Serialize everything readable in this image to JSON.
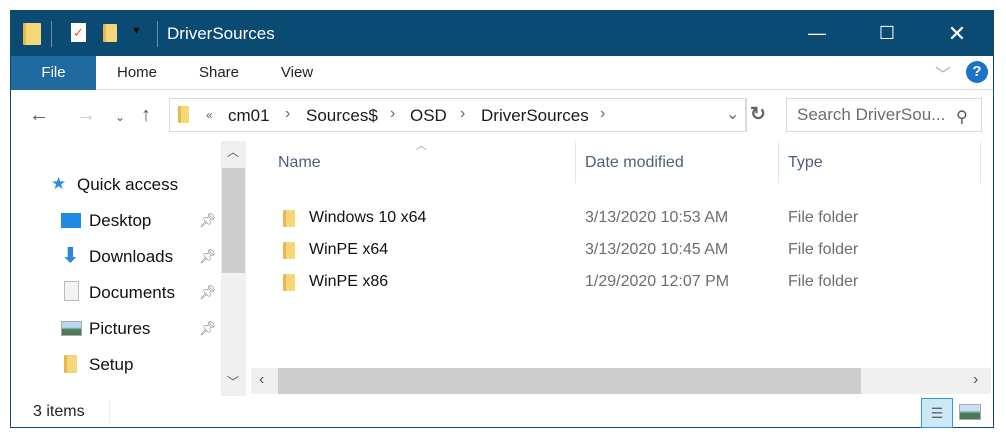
{
  "window": {
    "title": "DriverSources",
    "accent": "#0b4a72"
  },
  "ribbon": {
    "tabs": [
      "File",
      "Home",
      "Share",
      "View"
    ],
    "help": "?"
  },
  "address": {
    "overflow": "«",
    "crumbs": [
      "cm01",
      "Sources$",
      "OSD",
      "DriverSources"
    ]
  },
  "search": {
    "placeholder": "Search DriverSou..."
  },
  "nav": {
    "items": [
      {
        "label": "Quick access",
        "icon": "star-icon"
      },
      {
        "label": "Desktop",
        "icon": "desktop-icon",
        "pinned": true
      },
      {
        "label": "Downloads",
        "icon": "download-icon",
        "pinned": true
      },
      {
        "label": "Documents",
        "icon": "document-icon",
        "pinned": true
      },
      {
        "label": "Pictures",
        "icon": "pictures-icon",
        "pinned": true
      },
      {
        "label": "Setup",
        "icon": "folder-icon"
      }
    ]
  },
  "columns": [
    "Name",
    "Date modified",
    "Type"
  ],
  "files": [
    {
      "name": "Windows 10 x64",
      "date": "3/13/2020 10:53 AM",
      "type": "File folder"
    },
    {
      "name": "WinPE x64",
      "date": "3/13/2020 10:45 AM",
      "type": "File folder"
    },
    {
      "name": "WinPE x86",
      "date": "1/29/2020 12:07 PM",
      "type": "File folder"
    }
  ],
  "status": {
    "count": "3 items"
  }
}
